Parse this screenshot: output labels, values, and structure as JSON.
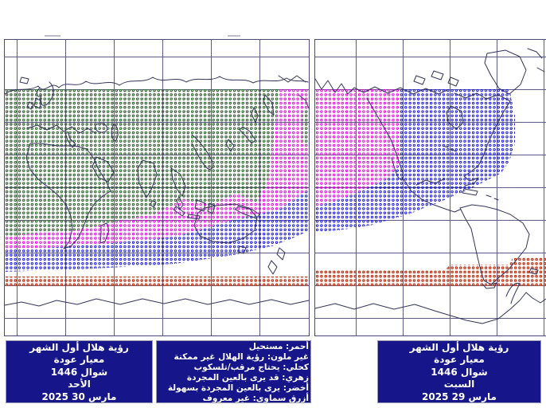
{
  "app": {
    "description_note": "crescent moon first-sighting visibility world maps",
    "background": "#ffffff"
  },
  "colors": {
    "zone_green": "#1e7d1e",
    "zone_magenta": "#e600e6",
    "zone_blue": "#1414dd",
    "zone_red": "#bf3316",
    "panel_bg": "#16168a",
    "panel_text": "#ffffff",
    "grid_line": "#5b5b83",
    "map_border": "#4a4a72",
    "coast_line": "#34345a"
  },
  "left_map_panel": {
    "title_lines": [
      "رؤية هلال أول الشهر",
      "معيار عودة",
      "شوال 1446",
      "الأحد",
      "مارس 30 2025"
    ]
  },
  "color_key_panel": {
    "lines": [
      "أحمر: مستحيل",
      "غير ملون: رؤية الهلال غير ممكنة",
      "كحلي: يحتاج مرقب/تلسكوب",
      "زهري: قد يرى بالعين المجردة",
      "أخضر: يرى بالعين المجردة بسهولة",
      "أزرق سماوي: غير معروف"
    ]
  },
  "right_map_panel": {
    "title_lines": [
      "رؤية هلال أول الشهر",
      "معيار عودة",
      "شوال 1446",
      "السبت",
      "مارس 29 2025"
    ]
  }
}
